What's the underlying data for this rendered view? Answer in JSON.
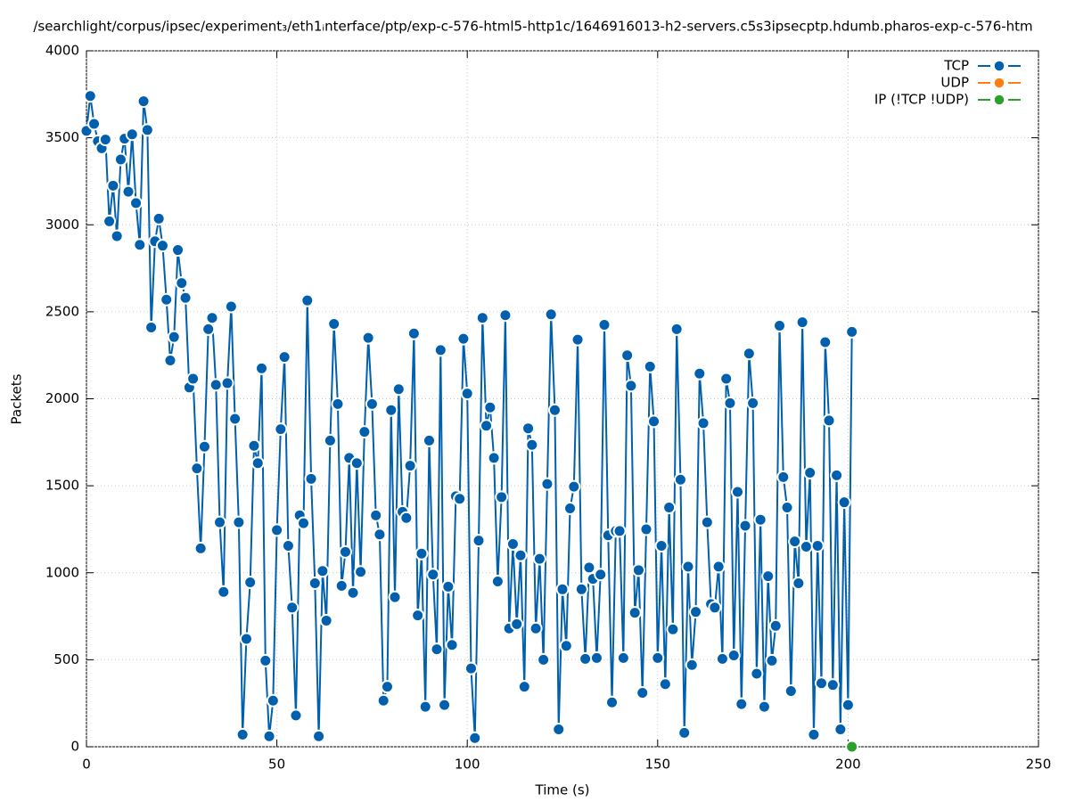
{
  "chart_data": {
    "type": "line",
    "title": "/searchlight/corpus/ipsec/experiment₃/eth1ᵢnterface/ptp/exp-c-576-html5-http1c/1646916013-h2-servers.c5s3ipsecptp.hdumb.pharos-exp-c-576-htm",
    "x_label": "Time (s)",
    "y_label": "Packets",
    "xlim": [
      0,
      250
    ],
    "xticks": [
      0,
      50,
      100,
      150,
      200,
      250
    ],
    "ylim": [
      0,
      4000
    ],
    "yticks": [
      0,
      500,
      1000,
      1500,
      2000,
      2500,
      3000,
      3500,
      4000
    ],
    "grid": true,
    "legend": "top-right",
    "series": [
      {
        "name": "TCP",
        "color": "#0060ad",
        "x": [
          0,
          1,
          2,
          3,
          4,
          5,
          6,
          7,
          8,
          9,
          10,
          11,
          12,
          13,
          14,
          15,
          16,
          17,
          18,
          19,
          20,
          21,
          22,
          23,
          24,
          25,
          26,
          27,
          28,
          29,
          30,
          31,
          32,
          33,
          34,
          35,
          36,
          37,
          38,
          39,
          40,
          41,
          42,
          43,
          44,
          45,
          46,
          47,
          48,
          49,
          50,
          51,
          52,
          53,
          54,
          55,
          56,
          57,
          58,
          59,
          60,
          61,
          62,
          63,
          64,
          65,
          66,
          67,
          68,
          69,
          70,
          71,
          72,
          73,
          74,
          75,
          76,
          77,
          78,
          79,
          80,
          81,
          82,
          83,
          84,
          85,
          86,
          87,
          88,
          89,
          90,
          91,
          92,
          93,
          94,
          95,
          96,
          97,
          98,
          99,
          100,
          101,
          102,
          103,
          104,
          105,
          106,
          107,
          108,
          109,
          110,
          111,
          112,
          113,
          114,
          115,
          116,
          117,
          118,
          119,
          120,
          121,
          122,
          123,
          124,
          125,
          126,
          127,
          128,
          129,
          130,
          131,
          132,
          133,
          134,
          135,
          136,
          137,
          138,
          139,
          140,
          141,
          142,
          143,
          144,
          145,
          146,
          147,
          148,
          149,
          150,
          151,
          152,
          153,
          154,
          155,
          156,
          157,
          158,
          159,
          160,
          161,
          162,
          163,
          164,
          165,
          166,
          167,
          168,
          169,
          170,
          171,
          172,
          173,
          174,
          175,
          176,
          177,
          178,
          179,
          180,
          181,
          182,
          183,
          184,
          185,
          186,
          187,
          188,
          189,
          190,
          191,
          192,
          193,
          194,
          195,
          196,
          197,
          198,
          199,
          200,
          201
        ],
        "values": [
          3540,
          3740,
          3580,
          3480,
          3440,
          3490,
          3020,
          3225,
          2935,
          3375,
          3495,
          3190,
          3520,
          3125,
          2885,
          3710,
          3545,
          2410,
          2905,
          3035,
          2880,
          2570,
          2220,
          2355,
          2855,
          2665,
          2580,
          2065,
          2115,
          1600,
          1140,
          1725,
          2400,
          2465,
          2080,
          1290,
          890,
          2090,
          2530,
          1885,
          1290,
          70,
          620,
          945,
          1730,
          1630,
          2175,
          495,
          60,
          265,
          1245,
          1825,
          2240,
          1155,
          800,
          180,
          1330,
          1285,
          2565,
          1540,
          940,
          60,
          1010,
          725,
          1760,
          2430,
          1970,
          925,
          1120,
          1660,
          885,
          1630,
          1005,
          1810,
          2350,
          1970,
          1330,
          1220,
          265,
          345,
          1935,
          860,
          2055,
          1350,
          1315,
          1615,
          2375,
          755,
          1110,
          230,
          1760,
          990,
          560,
          2280,
          240,
          920,
          585,
          1440,
          1425,
          2345,
          2030,
          450,
          50,
          1185,
          2465,
          1845,
          1950,
          1660,
          950,
          1435,
          2480,
          680,
          1165,
          705,
          1100,
          345,
          1830,
          1735,
          680,
          1080,
          500,
          1510,
          2485,
          1935,
          100,
          905,
          580,
          1370,
          1495,
          2340,
          905,
          505,
          1030,
          965,
          510,
          990,
          2425,
          1215,
          255,
          1240,
          1240,
          510,
          2250,
          2075,
          770,
          1015,
          310,
          1250,
          2185,
          1870,
          510,
          1155,
          360,
          1375,
          675,
          2400,
          1535,
          80,
          1035,
          470,
          775,
          2145,
          1860,
          1290,
          820,
          800,
          1035,
          505,
          2115,
          1975,
          525,
          1465,
          245,
          1270,
          2260,
          1975,
          420,
          1305,
          230,
          980,
          495,
          695,
          2420,
          1550,
          1375,
          320,
          1180,
          940,
          2440,
          1150,
          1575,
          70,
          1155,
          365,
          2325,
          1875,
          355,
          1560,
          100,
          1405,
          240,
          2385
        ]
      },
      {
        "name": "UDP",
        "color": "#ff7f0e",
        "x": [],
        "values": []
      },
      {
        "name": "IP (!TCP  !UDP)",
        "color": "#2ca02c",
        "x": [
          201
        ],
        "values": [
          0
        ]
      }
    ]
  }
}
